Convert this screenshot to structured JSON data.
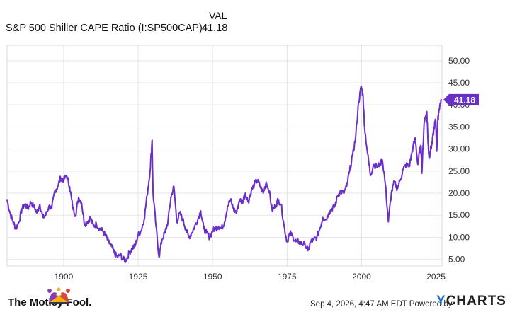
{
  "header": {
    "val_label": "VAL",
    "series_name": "S&P 500 Shiller CAPE Ratio (I:SP500CAP)",
    "current_value": "41.18"
  },
  "footer": {
    "date_text": "Sep 4, 2026, 4:47 AM EDT Powered by",
    "brand_left": "The Motley Fool.",
    "brand_right_prefix": "Y",
    "brand_right_rest": "CHARTS"
  },
  "colors": {
    "line": "#6b2fc9",
    "badge": "#6b2fc9",
    "grid": "#e6e6e6",
    "axis_text": "#333333"
  },
  "chart_data": {
    "type": "line",
    "x_ticks": [
      "1900",
      "1925",
      "1950",
      "1975",
      "2000",
      "2025"
    ],
    "y_ticks": [
      "5.00",
      "10.00",
      "15.00",
      "20.00",
      "25.00",
      "30.00",
      "35.00",
      "40.00",
      "45.00",
      "50.00"
    ],
    "ylim": [
      3.5,
      53.5
    ],
    "xlim": [
      1881,
      2027
    ],
    "last_value_label": "41.18",
    "grid": true,
    "series": [
      {
        "values": [
          [
            1881,
            18.5
          ],
          [
            1882,
            15.5
          ],
          [
            1883,
            13.5
          ],
          [
            1884,
            12.0
          ],
          [
            1885,
            13.5
          ],
          [
            1886,
            16.5
          ],
          [
            1887,
            17.5
          ],
          [
            1888,
            16.5
          ],
          [
            1889,
            18.0
          ],
          [
            1890,
            17.0
          ],
          [
            1891,
            15.5
          ],
          [
            1892,
            17.5
          ],
          [
            1893,
            14.5
          ],
          [
            1894,
            15.0
          ],
          [
            1895,
            17.0
          ],
          [
            1896,
            16.5
          ],
          [
            1897,
            20.5
          ],
          [
            1898,
            21.5
          ],
          [
            1899,
            23.5
          ],
          [
            1900,
            23.0
          ],
          [
            1901,
            24.0
          ],
          [
            1902,
            21.5
          ],
          [
            1903,
            17.0
          ],
          [
            1904,
            15.0
          ],
          [
            1905,
            19.0
          ],
          [
            1906,
            18.0
          ],
          [
            1907,
            13.0
          ],
          [
            1908,
            13.5
          ],
          [
            1909,
            14.5
          ],
          [
            1910,
            12.5
          ],
          [
            1911,
            13.0
          ],
          [
            1912,
            12.0
          ],
          [
            1913,
            11.5
          ],
          [
            1914,
            10.5
          ],
          [
            1915,
            9.0
          ],
          [
            1916,
            8.0
          ],
          [
            1917,
            6.5
          ],
          [
            1918,
            5.5
          ],
          [
            1919,
            6.0
          ],
          [
            1920,
            5.0
          ],
          [
            1921,
            4.8
          ],
          [
            1922,
            6.5
          ],
          [
            1923,
            7.5
          ],
          [
            1924,
            8.0
          ],
          [
            1925,
            10.5
          ],
          [
            1926,
            11.5
          ],
          [
            1927,
            14.0
          ],
          [
            1928,
            19.5
          ],
          [
            1929,
            25.0
          ],
          [
            1929.7,
            32.0
          ],
          [
            1930,
            20.0
          ],
          [
            1931,
            12.5
          ],
          [
            1932,
            5.5
          ],
          [
            1933,
            9.5
          ],
          [
            1934,
            11.0
          ],
          [
            1935,
            13.5
          ],
          [
            1936,
            19.0
          ],
          [
            1937,
            21.5
          ],
          [
            1938,
            13.5
          ],
          [
            1939,
            15.5
          ],
          [
            1940,
            14.0
          ],
          [
            1941,
            12.0
          ],
          [
            1942,
            10.0
          ],
          [
            1943,
            11.0
          ],
          [
            1944,
            12.5
          ],
          [
            1945,
            14.0
          ],
          [
            1946,
            16.0
          ],
          [
            1947,
            12.0
          ],
          [
            1948,
            11.0
          ],
          [
            1949,
            10.0
          ],
          [
            1950,
            11.5
          ],
          [
            1951,
            12.0
          ],
          [
            1952,
            12.5
          ],
          [
            1953,
            12.0
          ],
          [
            1954,
            13.5
          ],
          [
            1955,
            17.0
          ],
          [
            1956,
            18.5
          ],
          [
            1957,
            16.5
          ],
          [
            1958,
            15.5
          ],
          [
            1959,
            18.5
          ],
          [
            1960,
            18.0
          ],
          [
            1961,
            20.0
          ],
          [
            1962,
            18.0
          ],
          [
            1963,
            20.5
          ],
          [
            1964,
            22.0
          ],
          [
            1965,
            23.0
          ],
          [
            1966,
            21.5
          ],
          [
            1967,
            20.0
          ],
          [
            1968,
            22.5
          ],
          [
            1969,
            20.5
          ],
          [
            1970,
            16.0
          ],
          [
            1971,
            17.0
          ],
          [
            1972,
            18.5
          ],
          [
            1973,
            17.5
          ],
          [
            1974,
            12.5
          ],
          [
            1975,
            9.0
          ],
          [
            1976,
            11.0
          ],
          [
            1977,
            10.0
          ],
          [
            1978,
            9.0
          ],
          [
            1979,
            9.0
          ],
          [
            1980,
            8.5
          ],
          [
            1981,
            8.5
          ],
          [
            1982,
            7.0
          ],
          [
            1983,
            9.0
          ],
          [
            1984,
            9.5
          ],
          [
            1985,
            10.0
          ],
          [
            1986,
            12.0
          ],
          [
            1987,
            14.5
          ],
          [
            1988,
            14.0
          ],
          [
            1989,
            15.5
          ],
          [
            1990,
            16.5
          ],
          [
            1991,
            17.0
          ],
          [
            1992,
            19.5
          ],
          [
            1993,
            20.5
          ],
          [
            1994,
            20.0
          ],
          [
            1995,
            21.5
          ],
          [
            1996,
            25.0
          ],
          [
            1997,
            28.5
          ],
          [
            1998,
            32.5
          ],
          [
            1999,
            40.5
          ],
          [
            1999.9,
            44.2
          ],
          [
            2000.5,
            42.0
          ],
          [
            2001,
            35.0
          ],
          [
            2002,
            29.0
          ],
          [
            2003,
            24.0
          ],
          [
            2004,
            26.5
          ],
          [
            2005,
            26.0
          ],
          [
            2006,
            26.5
          ],
          [
            2007,
            27.5
          ],
          [
            2008,
            22.0
          ],
          [
            2009,
            13.5
          ],
          [
            2010,
            20.0
          ],
          [
            2011,
            22.5
          ],
          [
            2012,
            21.0
          ],
          [
            2013,
            23.0
          ],
          [
            2014,
            25.5
          ],
          [
            2015,
            26.5
          ],
          [
            2016,
            26.0
          ],
          [
            2017,
            29.5
          ],
          [
            2018,
            32.5
          ],
          [
            2018.9,
            26.5
          ],
          [
            2019.5,
            29.5
          ],
          [
            2020,
            30.5
          ],
          [
            2020.25,
            24.5
          ],
          [
            2021,
            36.0
          ],
          [
            2021.9,
            38.5
          ],
          [
            2022.5,
            29.0
          ],
          [
            2022.8,
            28.0
          ],
          [
            2023,
            29.5
          ],
          [
            2023.6,
            31.0
          ],
          [
            2024,
            33.0
          ],
          [
            2024.5,
            35.5
          ],
          [
            2024.9,
            36.5
          ],
          [
            2025.25,
            29.5
          ],
          [
            2025.6,
            36.5
          ],
          [
            2026,
            39.0
          ],
          [
            2026.7,
            41.18
          ]
        ]
      }
    ]
  }
}
